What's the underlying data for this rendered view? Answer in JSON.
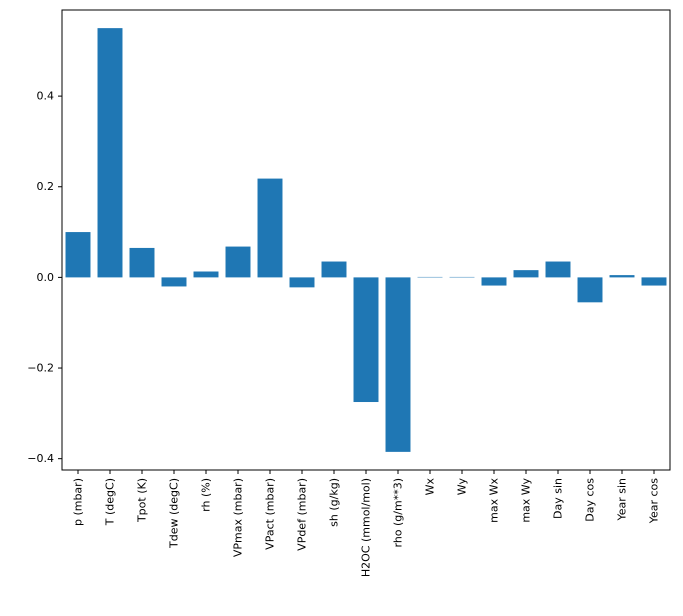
{
  "chart_data": {
    "type": "bar",
    "title": "",
    "xlabel": "",
    "ylabel": "",
    "categories": [
      "p (mbar)",
      "T (degC)",
      "Tpot (K)",
      "Tdew (degC)",
      "rh (%)",
      "VPmax (mbar)",
      "VPact (mbar)",
      "VPdef (mbar)",
      "sh (g/kg)",
      "H2OC (mmol/mol)",
      "rho (g/m**3)",
      "Wx",
      "Wy",
      "max Wx",
      "max Wy",
      "Day sin",
      "Day cos",
      "Year sin",
      "Year cos"
    ],
    "values": [
      0.1,
      0.55,
      0.065,
      -0.02,
      0.013,
      0.068,
      0.218,
      -0.022,
      0.035,
      -0.275,
      -0.385,
      0.001,
      0.001,
      -0.018,
      0.016,
      0.035,
      -0.055,
      0.005,
      -0.018
    ],
    "ylim": [
      -0.425,
      0.59
    ],
    "yticks": [
      -0.4,
      -0.2,
      0.0,
      0.2,
      0.4
    ],
    "ytick_labels": [
      "−0.4",
      "−0.2",
      "0.0",
      "0.2",
      "0.4"
    ],
    "bar_color": "#1f77b4",
    "axis_color": "#000000",
    "grid": false,
    "legend_position": "none"
  }
}
